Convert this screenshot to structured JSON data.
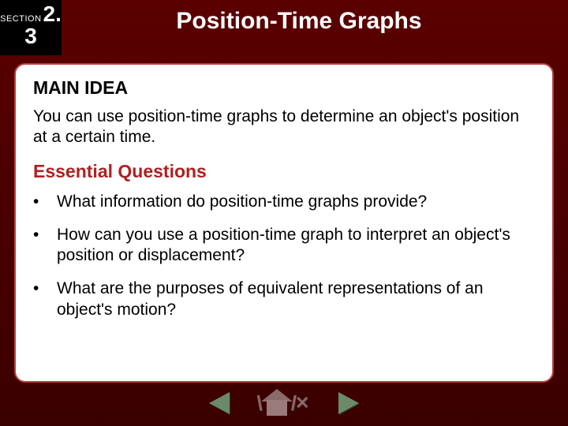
{
  "header": {
    "section_label": "SECTION",
    "section_top": "2.",
    "section_bottom": "3",
    "title": "Position-Time Graphs"
  },
  "main_idea": {
    "heading_bold": "MAIN",
    "heading_rest": " IDEA",
    "text": "You can use position-time graphs to determine an object's position at a certain time."
  },
  "essential": {
    "heading": "Essential Questions",
    "bullets": [
      "What information do position-time graphs provide?",
      "How can you use a position-time graph to interpret an object's position or displacement?",
      "What are the purposes of equivalent representations of an object's motion?"
    ]
  },
  "colors": {
    "accent_red": "#b02020",
    "panel_border": "#b84040",
    "bg_dark": "#3a0000"
  }
}
